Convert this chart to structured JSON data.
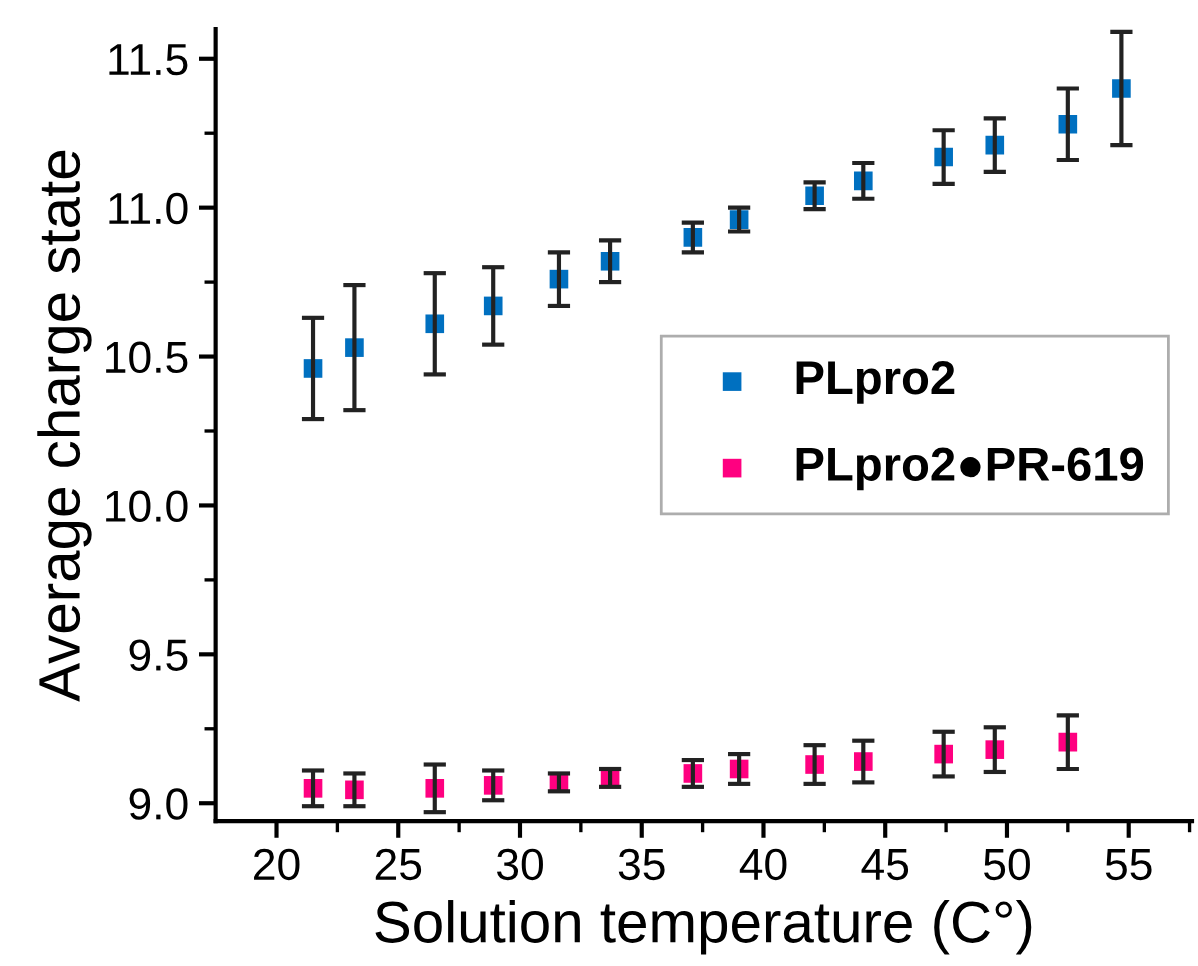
{
  "chart_data": {
    "type": "scatter",
    "xlabel": "Solution temperature (C°)",
    "ylabel": "Average charge state",
    "x": [
      21.5,
      23.2,
      26.5,
      28.9,
      31.6,
      33.7,
      37.1,
      39.0,
      42.1,
      44.1,
      47.4,
      49.5,
      52.5,
      54.7
    ],
    "series": [
      {
        "name": "PLpro2",
        "color": "#0070c0",
        "values": [
          10.46,
          10.53,
          10.61,
          10.67,
          10.76,
          10.82,
          10.9,
          10.96,
          11.04,
          11.09,
          11.17,
          11.21,
          11.28,
          11.4
        ],
        "errors": [
          0.17,
          0.21,
          0.17,
          0.13,
          0.09,
          0.07,
          0.05,
          0.04,
          0.045,
          0.06,
          0.09,
          0.09,
          0.12,
          0.19
        ]
      },
      {
        "name": "PLpro2●PR-619",
        "color": "#ff0080",
        "values": [
          9.05,
          9.045,
          9.05,
          9.06,
          9.07,
          9.085,
          9.1,
          9.115,
          9.13,
          9.14,
          9.165,
          9.18,
          9.205,
          null
        ],
        "errors": [
          0.06,
          0.055,
          0.08,
          0.05,
          0.03,
          0.03,
          0.045,
          0.05,
          0.065,
          0.07,
          0.075,
          0.075,
          0.09,
          null
        ]
      }
    ],
    "xlim": [
      17.5,
      57.6
    ],
    "ylim": [
      8.94,
      11.6
    ],
    "xticks": [
      20,
      25,
      30,
      35,
      40,
      45,
      50,
      55
    ],
    "yticks": [
      {
        "value": 9.0,
        "label": "9.0"
      },
      {
        "value": 9.5,
        "label": "9.5"
      },
      {
        "value": 10.0,
        "label": "10.0"
      },
      {
        "value": 10.5,
        "label": "10.5"
      },
      {
        "value": 11.0,
        "label": "11.0"
      },
      {
        "value": 11.5,
        "label": "11.5"
      }
    ],
    "marker": "square",
    "legend": "center right",
    "grid": false
  }
}
